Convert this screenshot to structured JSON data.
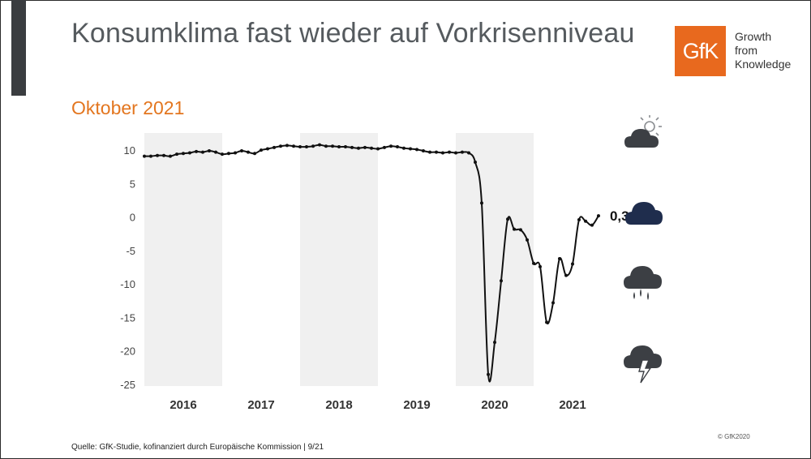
{
  "header": {
    "title": "Konsumklima fast wieder auf Vorkrisenniveau",
    "subtitle": "Oktober 2021"
  },
  "logo": {
    "mark": "GfK",
    "line1": "Growth",
    "line2": "from",
    "line3": "Knowledge"
  },
  "footer": {
    "source": "Quelle: GfK-Studie, kofinanziert durch Europäische Kommission | 9/21",
    "copyright": "© GfK2020"
  },
  "icons": [
    "sun-cloud-icon",
    "cloud-icon",
    "rain-cloud-icon",
    "thunderstorm-cloud-icon"
  ],
  "colors": {
    "accent": "#e3761f",
    "brand": "#e8691e",
    "shade": "#f0f0f0",
    "line": "#111111",
    "current_cloud": "#1f2d4d",
    "cloud": "#3c3f44"
  },
  "chart_data": {
    "type": "line",
    "title": "",
    "xlabel": "",
    "ylabel": "",
    "ylim": [
      -25,
      10
    ],
    "yticks": [
      10,
      5,
      0,
      -5,
      -10,
      -15,
      -20,
      -25
    ],
    "years": [
      "2016",
      "2017",
      "2018",
      "2019",
      "2020",
      "2021"
    ],
    "shaded_years": [
      "2016",
      "2018",
      "2020"
    ],
    "annotation": "0,3",
    "series": [
      {
        "x": [
          2016.0,
          2016.083,
          2016.167,
          2016.25,
          2016.333,
          2016.417,
          2016.5,
          2016.583,
          2016.667,
          2016.75,
          2016.833,
          2016.917,
          2017.0,
          2017.083,
          2017.167,
          2017.25,
          2017.333,
          2017.417,
          2017.5,
          2017.583,
          2017.667,
          2017.75,
          2017.833,
          2017.917,
          2018.0,
          2018.083,
          2018.167,
          2018.25,
          2018.333,
          2018.417,
          2018.5,
          2018.583,
          2018.667,
          2018.75,
          2018.833,
          2018.917,
          2019.0,
          2019.083,
          2019.167,
          2019.25,
          2019.333,
          2019.417,
          2019.5,
          2019.583,
          2019.667,
          2019.75,
          2019.833,
          2019.917,
          2020.0,
          2020.083,
          2020.167,
          2020.25,
          2020.333,
          2020.417,
          2020.5,
          2020.583,
          2020.667,
          2020.75,
          2020.833,
          2020.917,
          2021.0,
          2021.083,
          2021.167,
          2021.25,
          2021.333,
          2021.417,
          2021.5,
          2021.583,
          2021.667,
          2021.75,
          2021.833
        ],
        "values": [
          9.2,
          9.2,
          9.3,
          9.3,
          9.2,
          9.5,
          9.6,
          9.7,
          9.9,
          9.8,
          10.0,
          9.8,
          9.5,
          9.6,
          9.7,
          10.0,
          9.8,
          9.6,
          10.1,
          10.3,
          10.5,
          10.7,
          10.8,
          10.7,
          10.6,
          10.6,
          10.7,
          10.9,
          10.7,
          10.7,
          10.6,
          10.6,
          10.5,
          10.4,
          10.5,
          10.4,
          10.3,
          10.5,
          10.7,
          10.6,
          10.4,
          10.3,
          10.2,
          10.0,
          9.8,
          9.8,
          9.7,
          9.8,
          9.7,
          9.8,
          9.7,
          8.3,
          2.2,
          -23.4,
          -18.6,
          -9.4,
          -0.2,
          -1.7,
          -1.8,
          -3.3,
          -6.8,
          -7.3,
          -15.6,
          -12.7,
          -6.1,
          -8.6,
          -6.9,
          -0.3,
          -0.5,
          -1.1,
          0.3
        ]
      }
    ]
  }
}
